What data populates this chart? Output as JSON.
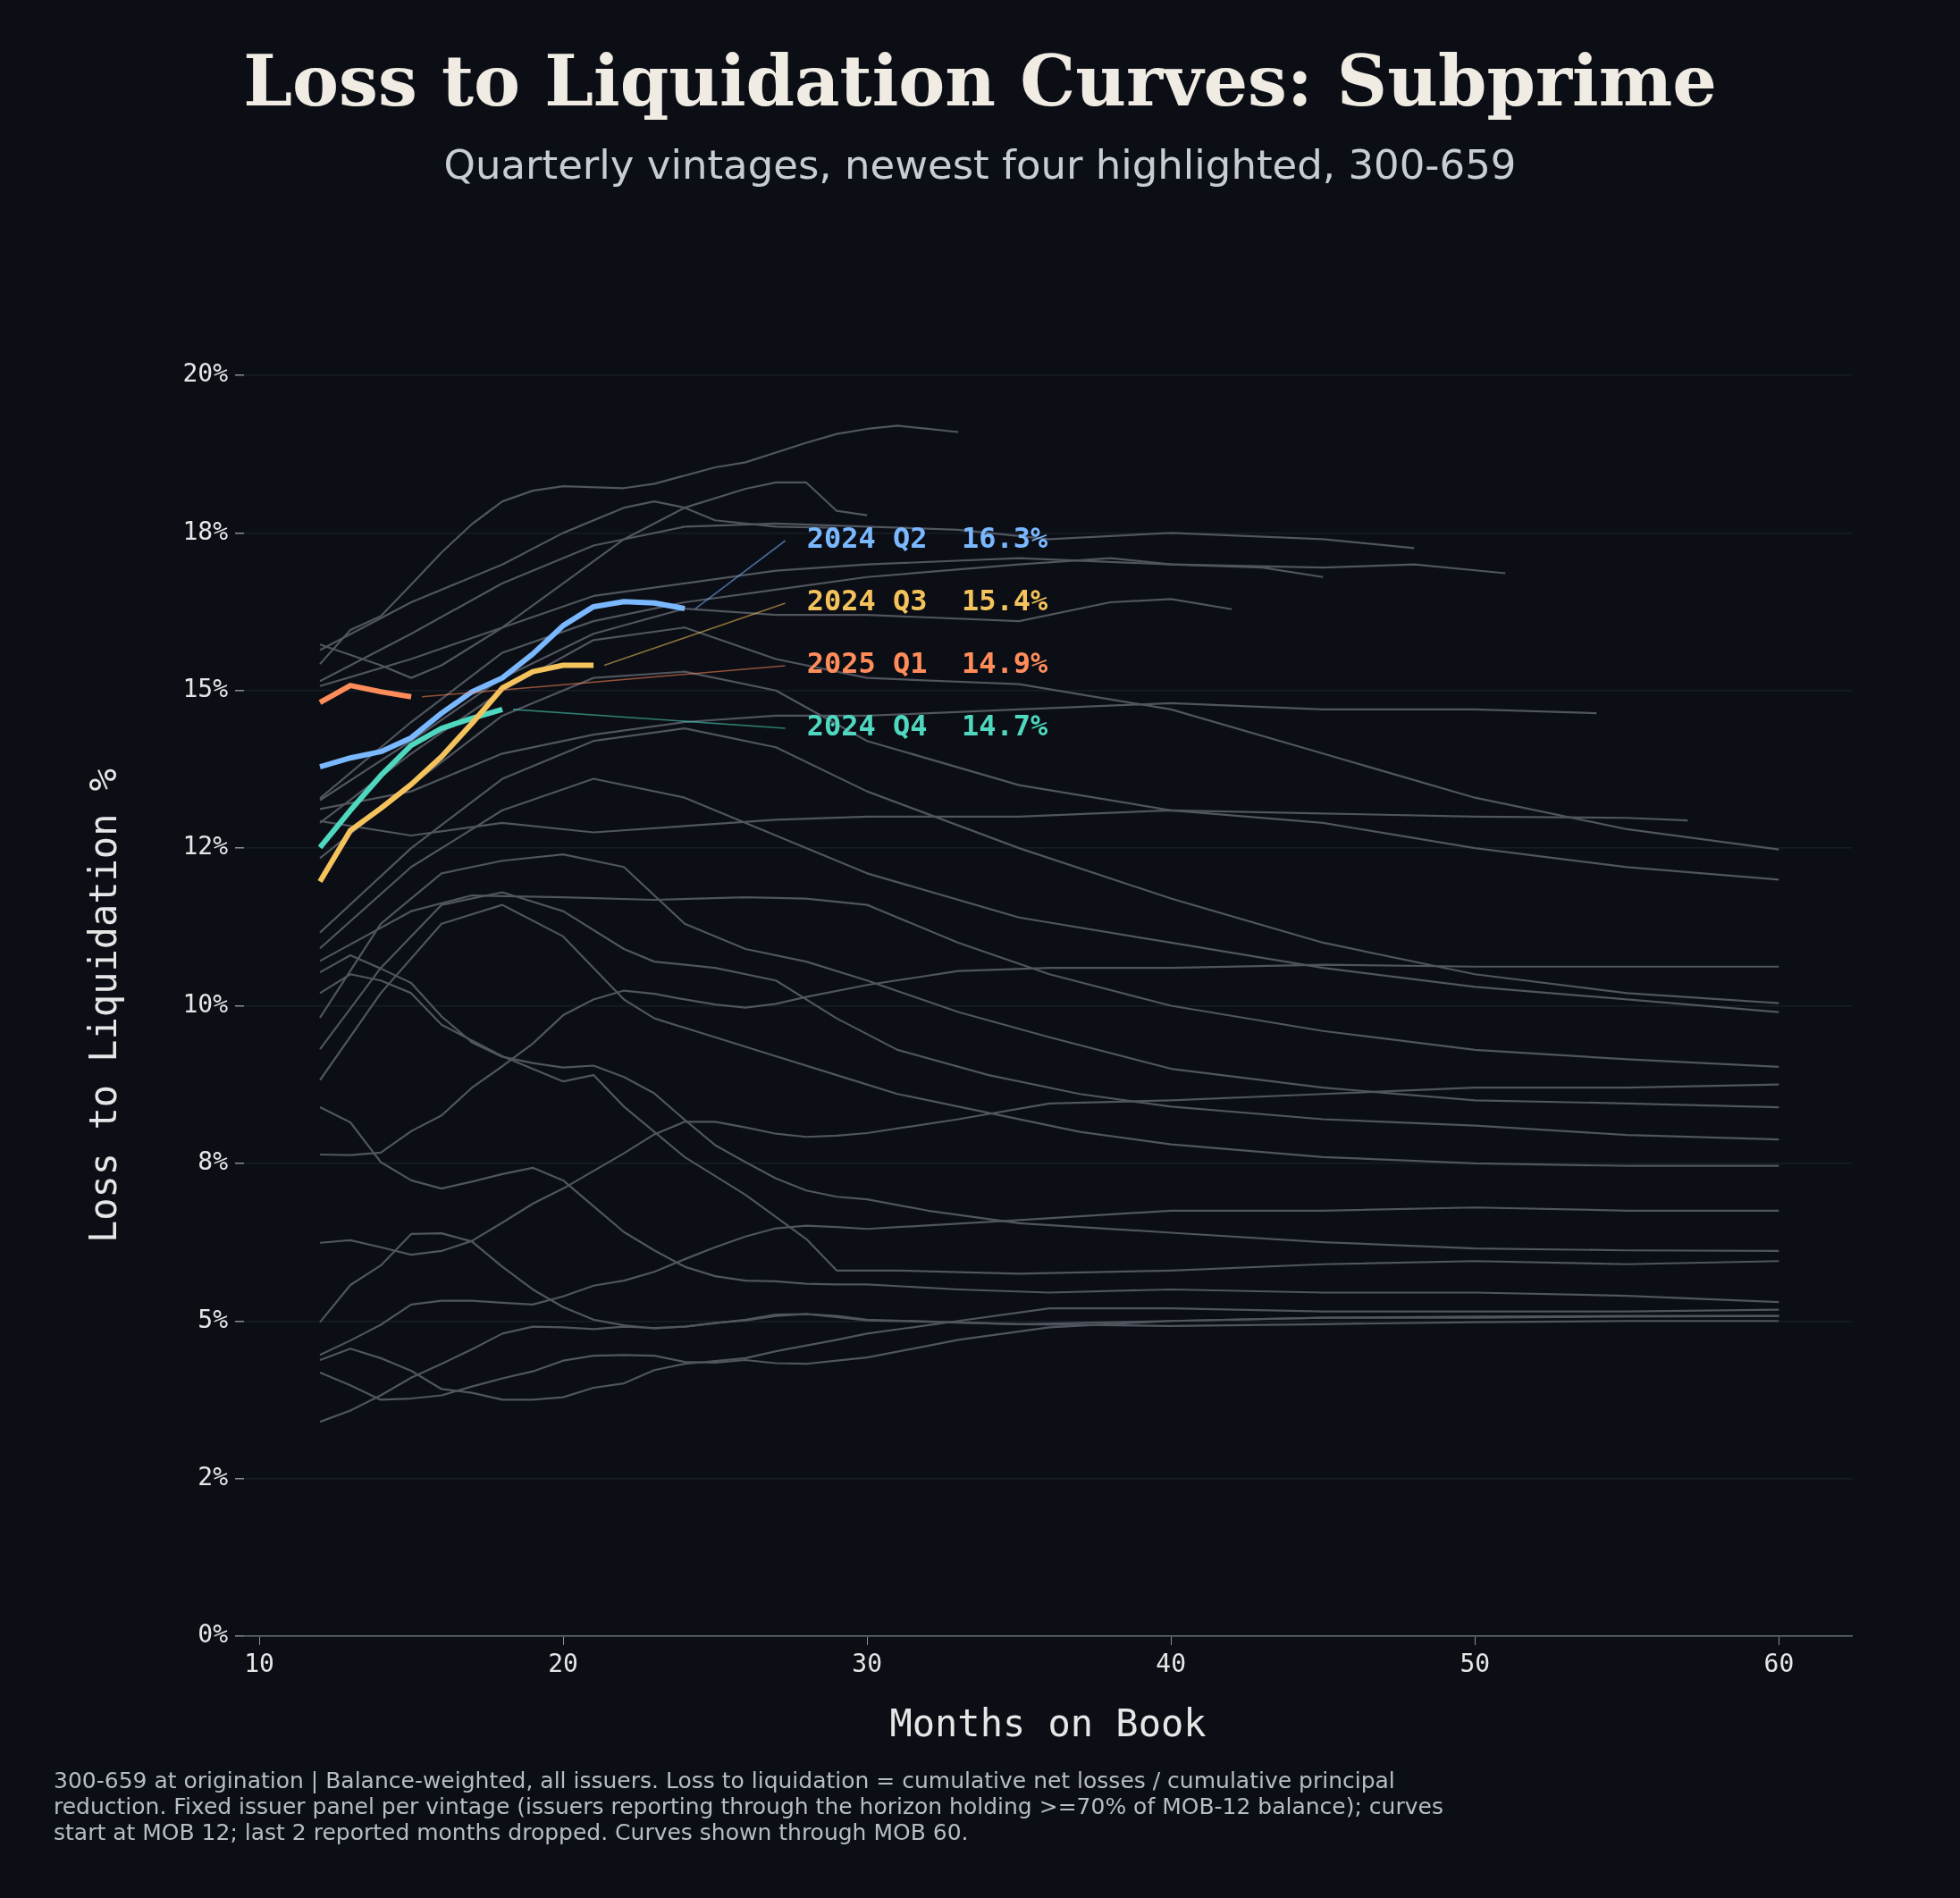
{
  "chart_data": {
    "type": "line",
    "title": "Loss to Liquidation Curves: Subprime",
    "subtitle": "Quarterly vintages, newest four highlighted, 300-659",
    "xlabel": "Months on Book",
    "ylabel": "Loss to Liquidation %",
    "xlim": [
      9.5,
      62.4
    ],
    "xticks": [
      10,
      20,
      30,
      40,
      50,
      60
    ],
    "ylim": [
      0,
      20
    ],
    "yticks": [
      {
        "value": 0,
        "label": "0%"
      },
      {
        "value": 2.5,
        "label": "2%"
      },
      {
        "value": 5,
        "label": "5%"
      },
      {
        "value": 7.5,
        "label": "8%"
      },
      {
        "value": 10,
        "label": "10%"
      },
      {
        "value": 12.5,
        "label": "12%"
      },
      {
        "value": 15,
        "label": "15%"
      },
      {
        "value": 17.5,
        "label": "18%"
      },
      {
        "value": 20,
        "label": "20%"
      }
    ],
    "grid": "y",
    "legend": false,
    "annotations": [
      "16.3%",
      "15.4%",
      "14.9%",
      "14.7%",
      "300-659 at origination | Balance-weighted, all issuers. Loss to liquidation = cumulative net losses / cumulative principal reduction. Fixed issuer panel per vintage (issuers reporting through the horizon holding >=70% of MOB-12 balance); curves start at MOB 12; last 2 reported months dropped. Curves shown through MOB 60."
    ],
    "series": [
      {
        "name": "2024 Q2",
        "color": "#7ab8ff",
        "x": [
          12,
          13,
          14,
          15,
          16,
          17,
          18,
          19,
          20,
          21,
          22,
          23,
          24
        ],
        "values": [
          13.79,
          13.93,
          14.03,
          14.25,
          14.64,
          14.98,
          15.2,
          15.58,
          16.03,
          16.33,
          16.41,
          16.39,
          16.3
        ]
      },
      {
        "name": "2024 Q3",
        "color": "#f5c35c",
        "x": [
          12,
          13,
          14,
          15,
          16,
          17,
          18,
          19,
          20,
          21
        ],
        "values": [
          11.97,
          12.78,
          13.13,
          13.51,
          13.95,
          14.48,
          15.04,
          15.3,
          15.4,
          15.4
        ]
      },
      {
        "name": "2025 Q1",
        "color": "#ff8c5a",
        "x": [
          12,
          13,
          14,
          15
        ],
        "values": [
          14.81,
          15.08,
          14.98,
          14.9
        ]
      },
      {
        "name": "2024 Q4",
        "color": "#4fd8bf",
        "x": [
          12,
          13,
          14,
          15,
          16,
          17,
          18
        ],
        "values": [
          12.51,
          13.1,
          13.65,
          14.13,
          14.4,
          14.56,
          14.7
        ]
      },
      {
        "color": "#50555e",
        "x": [
          12,
          13,
          14,
          15,
          16,
          17,
          18,
          19,
          20,
          22,
          23,
          25,
          26,
          28,
          29,
          30,
          31,
          32,
          33
        ],
        "values": [
          15.42,
          15.96,
          16.18,
          16.68,
          17.19,
          17.64,
          18.0,
          18.17,
          18.24,
          18.21,
          18.28,
          18.54,
          18.62,
          18.93,
          19.07,
          19.15,
          19.2,
          19.15,
          19.1
        ]
      },
      {
        "color": "#50555e",
        "x": [
          12,
          14,
          15,
          16,
          18,
          20,
          22,
          24,
          26,
          27,
          28,
          29,
          30
        ],
        "values": [
          15.73,
          15.4,
          15.2,
          15.4,
          16.0,
          16.7,
          17.4,
          17.9,
          18.2,
          18.3,
          18.3,
          17.85,
          17.78
        ]
      },
      {
        "color": "#50555e",
        "x": [
          12,
          15,
          18,
          20,
          22,
          23,
          24,
          25,
          27,
          29
        ],
        "values": [
          15.64,
          16.4,
          17.0,
          17.5,
          17.9,
          18.0,
          17.9,
          17.7,
          17.6,
          17.58
        ]
      },
      {
        "color": "#50555e",
        "x": [
          12,
          15,
          18,
          21,
          24,
          27,
          30,
          33,
          36,
          40,
          45,
          48
        ],
        "values": [
          15.15,
          15.9,
          16.7,
          17.3,
          17.6,
          17.65,
          17.6,
          17.55,
          17.4,
          17.5,
          17.4,
          17.26
        ]
      },
      {
        "color": "#50555e",
        "x": [
          12,
          15,
          18,
          21,
          24,
          27,
          30,
          35,
          40,
          45,
          48,
          51
        ],
        "values": [
          15.07,
          15.5,
          16.0,
          16.5,
          16.7,
          16.9,
          17.0,
          17.1,
          17.0,
          16.95,
          17.0,
          16.86
        ]
      },
      {
        "color": "#50555e",
        "x": [
          12,
          15,
          18,
          21,
          24,
          27,
          30,
          35,
          38,
          40,
          43,
          45
        ],
        "values": [
          13.29,
          14.5,
          15.6,
          16.1,
          16.4,
          16.6,
          16.8,
          17.0,
          17.1,
          17.0,
          16.95,
          16.8
        ]
      },
      {
        "color": "#50555e",
        "x": [
          12,
          15,
          18,
          21,
          24,
          27,
          30,
          35,
          38,
          40,
          42
        ],
        "values": [
          13.26,
          14.2,
          15.2,
          15.9,
          16.3,
          16.2,
          16.2,
          16.1,
          16.4,
          16.45,
          16.29
        ]
      },
      {
        "color": "#50555e",
        "x": [
          12,
          15,
          18,
          21,
          24,
          27,
          30,
          35,
          40,
          45,
          50,
          54
        ],
        "values": [
          13.12,
          13.4,
          14.0,
          14.3,
          14.5,
          14.6,
          14.6,
          14.7,
          14.8,
          14.7,
          14.7,
          14.64
        ]
      },
      {
        "color": "#50555e",
        "x": [
          12,
          15,
          18,
          21,
          24,
          27,
          30,
          35,
          40,
          45,
          50,
          55,
          57
        ],
        "values": [
          12.93,
          12.7,
          12.9,
          12.75,
          12.85,
          12.95,
          13.0,
          13.0,
          13.1,
          13.05,
          13.0,
          12.98,
          12.94
        ]
      },
      {
        "color": "#50555e",
        "x": [
          12,
          15,
          18,
          21,
          24,
          27,
          30,
          35,
          40,
          45,
          50,
          55,
          60
        ],
        "values": [
          12.9,
          14.0,
          15.0,
          15.8,
          16.0,
          15.5,
          15.2,
          15.1,
          14.7,
          14.0,
          13.3,
          12.8,
          12.48
        ]
      },
      {
        "color": "#50555e",
        "x": [
          12,
          15,
          18,
          21,
          24,
          27,
          30,
          35,
          40,
          45,
          50,
          55,
          60
        ],
        "values": [
          12.34,
          13.5,
          14.6,
          15.2,
          15.3,
          15.0,
          14.2,
          13.5,
          13.1,
          12.9,
          12.5,
          12.2,
          12.0
        ]
      },
      {
        "color": "#50555e",
        "x": [
          12,
          15,
          18,
          21,
          24,
          27,
          30,
          35,
          40,
          45,
          50,
          55,
          60
        ],
        "values": [
          11.16,
          12.5,
          13.6,
          14.2,
          14.4,
          14.1,
          13.4,
          12.5,
          11.7,
          11.0,
          10.5,
          10.2,
          10.04
        ]
      },
      {
        "color": "#50555e",
        "x": [
          12,
          15,
          18,
          21,
          24,
          27,
          30,
          35,
          40,
          45,
          50,
          55,
          60
        ],
        "values": [
          10.91,
          12.2,
          13.1,
          13.6,
          13.3,
          12.7,
          12.1,
          11.4,
          11.0,
          10.6,
          10.3,
          10.1,
          9.9
        ]
      },
      {
        "color": "#50555e",
        "x": [
          12,
          15,
          17,
          20,
          23,
          26,
          28,
          30,
          33,
          36,
          40,
          45,
          50,
          55,
          60
        ],
        "values": [
          10.71,
          11.5,
          11.75,
          11.72,
          11.68,
          11.72,
          11.7,
          11.6,
          11.0,
          10.5,
          10.0,
          9.6,
          9.3,
          9.15,
          9.03
        ]
      },
      {
        "color": "#50555e",
        "x": [
          12,
          14,
          16,
          18,
          20,
          22,
          24,
          26,
          28,
          30,
          33,
          36,
          40,
          45,
          50,
          55,
          60
        ],
        "values": [
          9.81,
          11.3,
          12.1,
          12.3,
          12.4,
          12.2,
          11.3,
          10.9,
          10.7,
          10.4,
          9.9,
          9.5,
          9.0,
          8.7,
          8.5,
          8.45,
          8.39
        ]
      },
      {
        "color": "#50555e",
        "x": [
          12,
          14,
          16,
          18,
          20,
          22,
          23,
          25,
          27,
          29,
          31,
          34,
          37,
          40,
          45,
          50,
          55,
          60
        ],
        "values": [
          9.31,
          10.6,
          11.6,
          11.8,
          11.5,
          10.9,
          10.7,
          10.6,
          10.4,
          9.8,
          9.3,
          8.9,
          8.6,
          8.4,
          8.2,
          8.1,
          7.95,
          7.88
        ]
      },
      {
        "color": "#50555e",
        "x": [
          12,
          14,
          16,
          18,
          20,
          22,
          23,
          25,
          27,
          29,
          31,
          34,
          37,
          40,
          45,
          50,
          55,
          60
        ],
        "values": [
          8.82,
          10.2,
          11.3,
          11.6,
          11.1,
          10.1,
          9.8,
          9.5,
          9.2,
          8.9,
          8.6,
          8.3,
          8.0,
          7.8,
          7.6,
          7.5,
          7.46,
          7.46
        ]
      },
      {
        "color": "#50555e",
        "x": [
          12,
          13,
          14,
          15,
          16,
          18,
          20,
          21,
          22,
          24,
          26,
          28,
          29,
          31,
          35,
          40,
          45,
          50,
          55,
          60
        ],
        "values": [
          10.2,
          10.5,
          10.4,
          10.2,
          9.7,
          9.2,
          8.8,
          8.9,
          8.4,
          7.6,
          7.0,
          6.3,
          5.8,
          5.8,
          5.75,
          5.8,
          5.9,
          5.95,
          5.9,
          5.95
        ]
      },
      {
        "color": "#50555e",
        "x": [
          12,
          13,
          14,
          15,
          16,
          17,
          18,
          19,
          20,
          21,
          22,
          23,
          24,
          25,
          26,
          27,
          28,
          30,
          33,
          36,
          40,
          45,
          50,
          55,
          60
        ],
        "values": [
          7.64,
          7.63,
          7.67,
          8.01,
          8.26,
          8.7,
          9.04,
          9.4,
          9.85,
          10.1,
          10.24,
          10.19,
          10.1,
          10.02,
          9.97,
          10.03,
          10.14,
          10.33,
          10.55,
          10.6,
          10.6,
          10.65,
          10.62,
          10.62,
          10.62
        ]
      },
      {
        "color": "#50555e",
        "x": [
          12,
          13,
          14,
          15,
          16,
          17,
          18,
          19,
          20,
          21,
          22,
          23,
          24,
          25,
          26,
          27,
          28,
          29,
          30,
          33,
          36,
          40,
          45,
          50,
          55,
          60
        ],
        "values": [
          6.24,
          6.28,
          6.17,
          6.05,
          6.11,
          6.27,
          6.56,
          6.86,
          7.1,
          7.38,
          7.66,
          7.96,
          8.16,
          8.16,
          8.07,
          7.97,
          7.92,
          7.94,
          7.98,
          8.2,
          8.45,
          8.5,
          8.6,
          8.7,
          8.7,
          8.75
        ]
      },
      {
        "color": "#50555e",
        "x": [
          12,
          13,
          14,
          15,
          16,
          17,
          18,
          19,
          20,
          21,
          22,
          23,
          24,
          25,
          26,
          27,
          28,
          29,
          30,
          32,
          35,
          40,
          45,
          50,
          55,
          60
        ],
        "values": [
          10.53,
          10.8,
          10.59,
          10.36,
          9.83,
          9.42,
          9.19,
          9.09,
          9.02,
          9.05,
          8.87,
          8.61,
          8.19,
          7.79,
          7.52,
          7.26,
          7.07,
          6.97,
          6.93,
          6.75,
          6.55,
          6.4,
          6.25,
          6.15,
          6.12,
          6.11
        ]
      },
      {
        "color": "#50555e",
        "x": [
          12,
          13,
          14,
          15,
          16,
          17,
          18,
          19,
          20,
          21,
          22,
          23,
          24,
          25,
          26,
          27,
          28,
          29,
          30,
          35,
          40,
          45,
          50,
          55,
          60
        ],
        "values": [
          4.46,
          4.69,
          4.94,
          5.26,
          5.32,
          5.32,
          5.29,
          5.26,
          5.39,
          5.56,
          5.64,
          5.78,
          5.98,
          6.17,
          6.34,
          6.47,
          6.51,
          6.49,
          6.46,
          6.6,
          6.75,
          6.75,
          6.8,
          6.75,
          6.75
        ]
      },
      {
        "color": "#50555e",
        "x": [
          12,
          13,
          14,
          15,
          16,
          17,
          18,
          19,
          20,
          21,
          22,
          23,
          24,
          25,
          26,
          27,
          28,
          29,
          30,
          33,
          36,
          40,
          45,
          50,
          55,
          60
        ],
        "values": [
          8.39,
          8.15,
          7.52,
          7.23,
          7.1,
          7.21,
          7.33,
          7.43,
          7.23,
          6.82,
          6.41,
          6.12,
          5.86,
          5.71,
          5.64,
          5.63,
          5.59,
          5.58,
          5.58,
          5.5,
          5.45,
          5.5,
          5.45,
          5.45,
          5.4,
          5.3
        ]
      },
      {
        "color": "#50555e",
        "x": [
          12,
          13,
          14,
          15,
          16,
          17,
          18,
          19,
          20,
          21,
          22,
          23,
          24,
          26,
          27,
          29,
          30,
          33,
          36,
          40,
          45,
          50,
          55,
          60
        ],
        "values": [
          4.38,
          4.56,
          4.41,
          4.21,
          3.92,
          3.86,
          3.75,
          3.75,
          3.79,
          3.94,
          4.01,
          4.22,
          4.32,
          4.41,
          4.52,
          4.7,
          4.8,
          5.0,
          5.2,
          5.2,
          5.15,
          5.15,
          5.15,
          5.18
        ]
      },
      {
        "color": "#50555e",
        "x": [
          12,
          13,
          14,
          15,
          16,
          17,
          18,
          19,
          20,
          21,
          22,
          23,
          24,
          25,
          26,
          27,
          28,
          29,
          30,
          33,
          36,
          40,
          45,
          50,
          55,
          60
        ],
        "values": [
          4.18,
          3.98,
          3.75,
          3.77,
          3.82,
          3.96,
          4.09,
          4.2,
          4.37,
          4.45,
          4.46,
          4.45,
          4.35,
          4.34,
          4.38,
          4.33,
          4.32,
          4.37,
          4.42,
          4.7,
          4.9,
          5.0,
          5.05,
          5.05,
          5.07,
          5.08
        ]
      },
      {
        "color": "#50555e",
        "x": [
          12,
          13,
          14,
          15,
          16,
          17,
          18,
          19,
          20,
          21,
          22,
          23,
          24,
          26,
          27,
          28,
          29,
          30,
          35,
          40,
          45,
          50,
          55,
          60
        ],
        "values": [
          3.4,
          3.58,
          3.82,
          4.1,
          4.32,
          4.55,
          4.8,
          4.91,
          4.9,
          4.87,
          4.91,
          4.89,
          4.91,
          5.02,
          5.1,
          5.11,
          5.06,
          5.01,
          4.95,
          5.0,
          5.05,
          5.07,
          5.08,
          5.08
        ]
      },
      {
        "color": "#50555e",
        "x": [
          12,
          13,
          14,
          15,
          16,
          17,
          18,
          19,
          20,
          21,
          22,
          23,
          24,
          25,
          26,
          27,
          28,
          29,
          30,
          35,
          40,
          45,
          50,
          55,
          60
        ],
        "values": [
          4.98,
          5.57,
          5.88,
          6.38,
          6.39,
          6.26,
          5.86,
          5.5,
          5.22,
          5.02,
          4.93,
          4.88,
          4.91,
          4.97,
          5.01,
          5.08,
          5.11,
          5.08,
          5.02,
          4.95,
          4.92,
          4.95,
          4.98,
          5.0,
          5.0
        ]
      }
    ]
  }
}
